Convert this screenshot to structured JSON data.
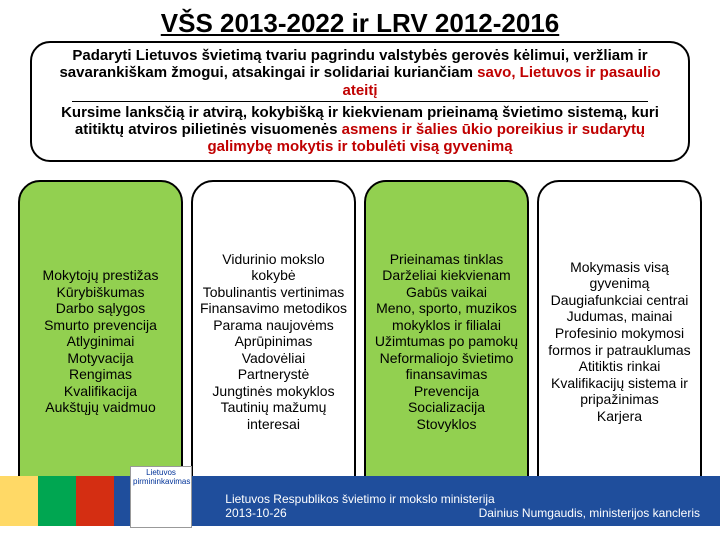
{
  "title": "VŠS 2013-2022 ir LRV 2012-2016",
  "header": {
    "line1_black": "Padaryti Lietuvos švietimą tvariu pagrindu valstybės gerovės kėlimui, veržliam ir savarankiškam žmogui, atsakingai ir solidariai kuriančiam ",
    "line1_red": "savo, Lietuvos ir pasaulio ateitį",
    "line2_black": "Kursime lanksčią ir atvirą, kokybišką ir kiekvienam prieinamą švietimo sistemą, kuri atitiktų atviros pilietinės visuomenės ",
    "line2_red": "asmens ir šalies ūkio poreikius ir sudarytų galimybę mokytis ir tobulėti visą gyvenimą"
  },
  "columns": [
    {
      "bg": "green",
      "text": "Mokytojų prestižas\nKūrybiškumas\nDarbo sąlygos\nSmurto prevencija\nAtlyginimai\nMotyvacija\nRengimas\nKvalifikacija\nAukštųjų vaidmuo"
    },
    {
      "bg": "white",
      "text": "Vidurinio mokslo kokybė\nTobulinantis vertinimas\nFinansavimo metodikos\nParama naujovėms\nAprūpinimas\nVadovėliai\nPartnerystė\nJungtinės mokyklos\nTautinių mažumų interesai"
    },
    {
      "bg": "green",
      "text": "Prieinamas tinklas\nDarželiai kiekvienam\nGabūs vaikai\nMeno, sporto, muzikos mokyklos ir filialai\nUžimtumas po pamokų\nNeformaliojo švietimo finansavimas\nPrevencija\nSocializacija\nStovyklos"
    },
    {
      "bg": "white",
      "text": "Mokymasis visą gyvenimą\nDaugiafunkciai centrai\nJudumas, mainai\nProfesinio mokymosi formos ir patrauklumas\nAtitiktis rinkai\nKvalifikacijų sistema ir pripažinimas\nKarjera"
    }
  ],
  "styling": {
    "title_fontsize": 26,
    "header_fontsize": 15,
    "column_fontsize": 14,
    "green_fill": "#92d050",
    "white_fill": "#ffffff",
    "red_text": "#c00000",
    "border_color": "#000000",
    "footer_colors": {
      "yellow": "#ffd966",
      "green": "#00a651",
      "red": "#d42e12",
      "blue": "#1f4e9c"
    }
  },
  "footer": {
    "logo_text": "Lietuvos pirmininkavimas",
    "center": "Lietuvos Respublikos švietimo ir mokslo ministerija",
    "date": "2013-10-26",
    "right": "Dainius Numgaudis, ministerijos kancleris"
  }
}
